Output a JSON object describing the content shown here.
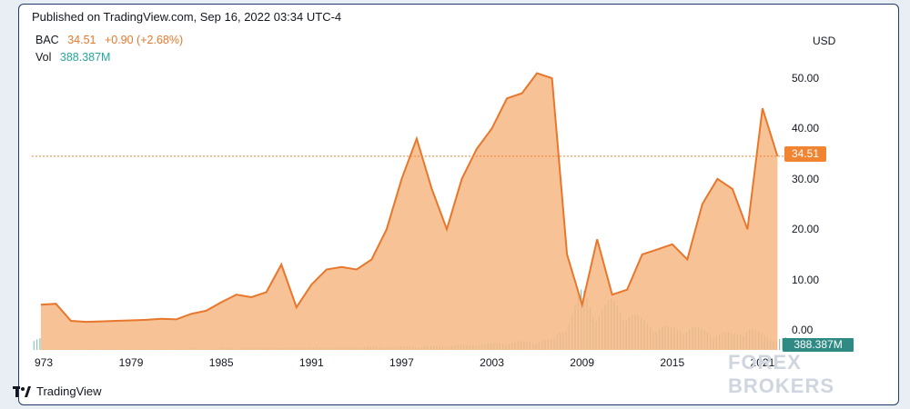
{
  "published": "Published on TradingView.com, Sep 16, 2022 03:34 UTC-4",
  "legend": {
    "symbol": "BAC",
    "price": "34.51",
    "change": "+0.90 (+2.68%)",
    "vol_label": "Vol",
    "vol_value": "388.387M"
  },
  "currency": "USD",
  "price_badge": "34.51",
  "vol_badge": "388.387M",
  "logo_text": "TradingView",
  "watermark": "FOREX BROKERS",
  "colors": {
    "line": "#e8772b",
    "area": "#f4b784",
    "volume": "#2f8a84",
    "price_line": "#f08431"
  },
  "chart_data": {
    "type": "area",
    "series": [
      {
        "x": [
          1973,
          1974,
          1975,
          1976,
          1977,
          1978,
          1979,
          1980,
          1981,
          1982,
          1983,
          1984,
          1985,
          1986,
          1987,
          1988,
          1989,
          1990,
          1991,
          1992,
          1993,
          1994,
          1995,
          1996,
          1997,
          1998,
          1999,
          2000,
          2001,
          2002,
          2003,
          2004,
          2005,
          2006,
          2007,
          2008,
          2009,
          2010,
          2011,
          2012,
          2013,
          2014,
          2015,
          2016,
          2017,
          2018,
          2019,
          2020,
          2021,
          2022
        ],
        "y": [
          5,
          5.2,
          1.8,
          1.6,
          1.7,
          1.8,
          1.9,
          2.0,
          2.2,
          2.1,
          3.2,
          3.8,
          5.5,
          7,
          6.5,
          7.5,
          13,
          4.5,
          9,
          12,
          12.5,
          12,
          14,
          20,
          30,
          38,
          28,
          20,
          30,
          36,
          40,
          46,
          47,
          51,
          50,
          15,
          5,
          18,
          7,
          8,
          15,
          16,
          17,
          14,
          25,
          30,
          28,
          20,
          44,
          34.51
        ]
      }
    ],
    "volume_series": {
      "x": [
        1973,
        1980,
        1990,
        2000,
        2007,
        2008,
        2009,
        2010,
        2011,
        2012,
        2013,
        2014,
        2015,
        2016,
        2017,
        2018,
        2019,
        2020,
        2021,
        2022
      ],
      "y": [
        0.1,
        0.1,
        0.2,
        0.4,
        1,
        3,
        6,
        4,
        5,
        4,
        3,
        2.5,
        2.2,
        2.5,
        2,
        1.8,
        1.6,
        2.4,
        1.5,
        1.2
      ]
    },
    "x_ticks": [
      "973",
      "1979",
      "1985",
      "1991",
      "1997",
      "2003",
      "2009",
      "2015",
      "2021"
    ],
    "y_ticks": [
      "50.00",
      "40.00",
      "30.00",
      "20.00",
      "10.00",
      "0.00"
    ],
    "ylim": [
      0,
      55
    ],
    "last_price": 34.51,
    "grid": false
  }
}
